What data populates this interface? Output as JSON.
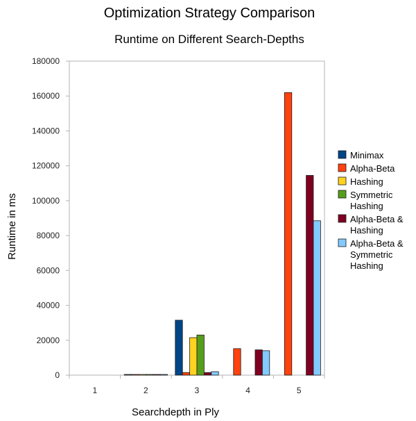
{
  "chart_data": {
    "type": "bar",
    "title": "Optimization Strategy Comparison",
    "subtitle": "Runtime on Different Search-Depths",
    "xlabel": "Searchdepth in Ply",
    "ylabel": "Runtime in ms",
    "ylim": [
      0,
      180000
    ],
    "yticks": [
      0,
      20000,
      40000,
      60000,
      80000,
      100000,
      120000,
      140000,
      160000,
      180000
    ],
    "categories": [
      "1",
      "2",
      "3",
      "4",
      "5"
    ],
    "grid": false,
    "legend_position": "right",
    "series": [
      {
        "name": "Minimax",
        "lines": [
          "Minimax"
        ],
        "color": "#004586",
        "values": [
          0,
          150,
          31500,
          0,
          0
        ]
      },
      {
        "name": "Alpha-Beta",
        "lines": [
          "Alpha-Beta"
        ],
        "color": "#ff420e",
        "values": [
          0,
          100,
          1500,
          15200,
          162000
        ]
      },
      {
        "name": "Hashing",
        "lines": [
          "Hashing"
        ],
        "color": "#ffd320",
        "values": [
          0,
          150,
          21500,
          0,
          0
        ]
      },
      {
        "name": "Symmetric Hashing",
        "lines": [
          "Symmetric",
          "Hashing"
        ],
        "color": "#579d1c",
        "values": [
          0,
          150,
          23000,
          0,
          0
        ]
      },
      {
        "name": "Alpha-Beta & Hashing",
        "lines": [
          "Alpha-Beta &",
          "Hashing"
        ],
        "color": "#7e0021",
        "values": [
          0,
          100,
          1500,
          14500,
          114500
        ]
      },
      {
        "name": "Alpha-Beta & Symmetric Hashing",
        "lines": [
          "Alpha-Beta &",
          "Symmetric",
          "Hashing"
        ],
        "color": "#83caff",
        "values": [
          0,
          100,
          2000,
          14000,
          88500
        ]
      }
    ]
  }
}
